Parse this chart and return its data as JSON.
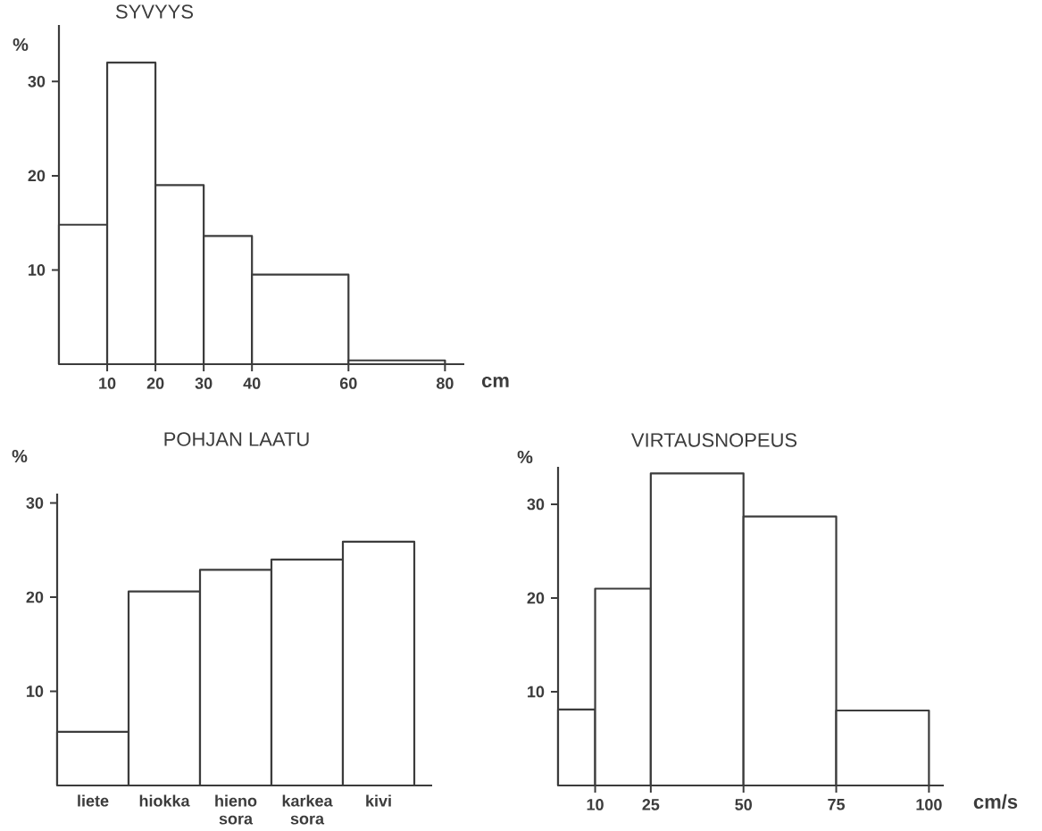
{
  "chart_data": [
    {
      "type": "histogram",
      "title": "SYVYYS",
      "ylabel": "%",
      "xlabel": "cm",
      "color": "#3c3c3c",
      "bins": [
        0,
        10,
        20,
        30,
        40,
        60,
        80
      ],
      "values": [
        14.8,
        32,
        19,
        13.6,
        9.5,
        0.4
      ],
      "xlim": [
        0,
        84
      ],
      "ylim": [
        0,
        36
      ],
      "xticks": [
        10,
        20,
        30,
        40,
        60,
        80
      ],
      "yticks": [
        10,
        20,
        30
      ]
    },
    {
      "type": "bar",
      "title": "POHJAN LAATU",
      "ylabel": "%",
      "color": "#3c3c3c",
      "categories": [
        "liete",
        "hiokka",
        "hieno sora",
        "karkea sora",
        "kivi"
      ],
      "values": [
        5.7,
        20.6,
        22.9,
        24,
        25.9
      ],
      "ylim": [
        0,
        31
      ],
      "yticks": [
        10,
        20,
        30
      ]
    },
    {
      "type": "histogram",
      "title": "VIRTAUSNOPEUS",
      "ylabel": "%",
      "xlabel": "cm/s",
      "color": "#3c3c3c",
      "bins": [
        0,
        10,
        25,
        50,
        75,
        100
      ],
      "values": [
        8.1,
        21,
        33.3,
        28.7,
        8
      ],
      "xlim": [
        0,
        104
      ],
      "ylim": [
        0,
        34
      ],
      "xticks": [
        10,
        25,
        50,
        75,
        100
      ],
      "yticks": [
        10,
        20,
        30
      ]
    }
  ]
}
